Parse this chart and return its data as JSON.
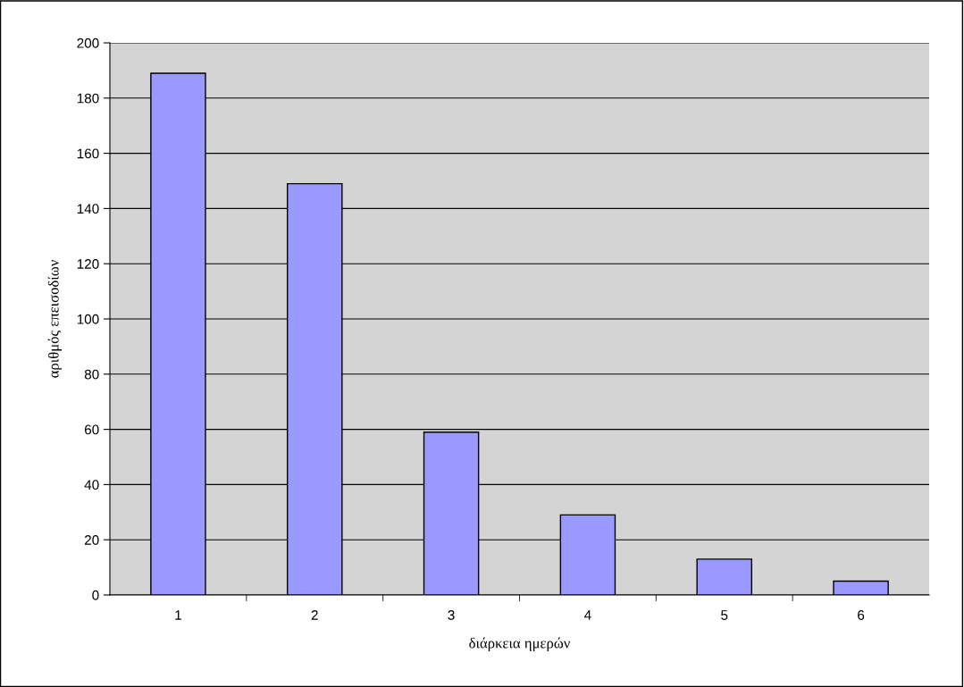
{
  "chart_data": {
    "type": "bar",
    "xlabel": "διάρκεια ημερών",
    "ylabel": "αριθμός επεισοδίων",
    "categories": [
      "1",
      "2",
      "3",
      "4",
      "5",
      "6"
    ],
    "values": [
      189,
      149,
      59,
      29,
      13,
      5
    ],
    "color": "#9999ff",
    "ylim": [
      0,
      200
    ],
    "yticks": [
      0,
      20,
      40,
      60,
      80,
      100,
      120,
      140,
      160,
      180,
      200
    ],
    "grid": "y"
  }
}
